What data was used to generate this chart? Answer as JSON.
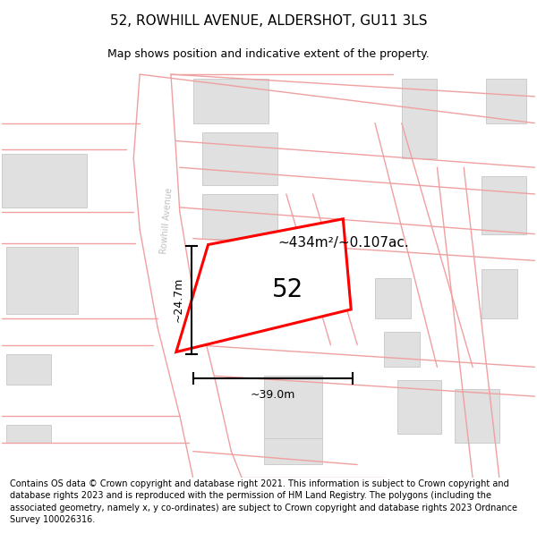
{
  "title": "52, ROWHILL AVENUE, ALDERSHOT, GU11 3LS",
  "subtitle": "Map shows position and indicative extent of the property.",
  "footer": "Contains OS data © Crown copyright and database right 2021. This information is subject to Crown copyright and database rights 2023 and is reproduced with the permission of HM Land Registry. The polygons (including the associated geometry, namely x, y co-ordinates) are subject to Crown copyright and database rights 2023 Ordnance Survey 100026316.",
  "area_label": "~434m²/~0.107ac.",
  "width_label": "~39.0m",
  "height_label": "~24.7m",
  "plot_number": "52",
  "bg_color": "#ffffff",
  "map_bg": "#ffffff",
  "road_line_color": "#f0a0a0",
  "building_color": "#e0e0e0",
  "building_edge_color": "#cccccc",
  "plot_outline_color": "#ff0000",
  "road_label_color": "#c0c0c0",
  "road_label": "Rowhill Avenue",
  "title_fontsize": 11,
  "subtitle_fontsize": 9,
  "footer_fontsize": 7,
  "label_fontsize": 11,
  "dim_fontsize": 9,
  "plot_num_fontsize": 20
}
